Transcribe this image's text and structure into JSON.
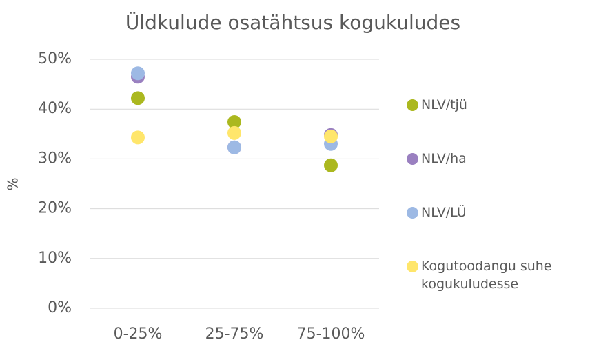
{
  "chart_data": {
    "type": "scatter",
    "title": "Üldkulude osatähtsus kogukuludes",
    "ylabel": "%",
    "categories": [
      "0-25%",
      "25-75%",
      "75-100%"
    ],
    "series": [
      {
        "name": "NLV/tjü",
        "color": "#abb81f",
        "values": [
          42.2,
          37.4,
          28.7
        ]
      },
      {
        "name": "NLV/ha",
        "color": "#9a80c0",
        "values": [
          46.5,
          32.3,
          34.8
        ]
      },
      {
        "name": "NLV/LÜ",
        "color": "#9db9e4",
        "values": [
          47.2,
          32.3,
          33.0
        ]
      },
      {
        "name": "Kogutoodangu suhe kogukuludesse",
        "color": "#ffe66b",
        "values": [
          34.3,
          35.2,
          34.5
        ]
      }
    ],
    "ylim": [
      0,
      50
    ],
    "yticks": [
      {
        "value": 0,
        "label": "0%"
      },
      {
        "value": 10,
        "label": "10%"
      },
      {
        "value": 20,
        "label": "20%"
      },
      {
        "value": 30,
        "label": "30%"
      },
      {
        "value": 40,
        "label": "40%"
      },
      {
        "value": 50,
        "label": "50%"
      }
    ],
    "grid": true,
    "legend": "right"
  }
}
